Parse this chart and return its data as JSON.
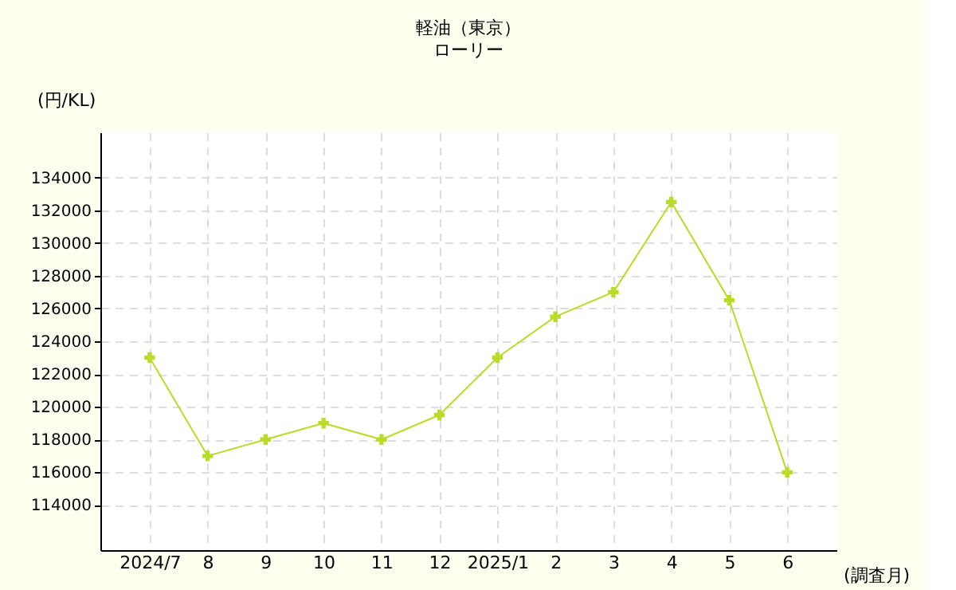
{
  "chart_data": {
    "type": "line",
    "title": "軽油（東京）",
    "subtitle": "ローリー",
    "xlabel": "(調査月)",
    "ylabel": "(円/KL)",
    "categories": [
      "2024/7",
      "8",
      "9",
      "10",
      "11",
      "12",
      "2025/1",
      "2",
      "3",
      "4",
      "5",
      "6"
    ],
    "series": [
      {
        "color": "#b8dc28",
        "values": [
          123000,
          117000,
          118000,
          119000,
          118000,
          119500,
          123000,
          125500,
          127000,
          132500,
          126500,
          116000
        ]
      }
    ],
    "ylim": [
      111250,
      136750
    ],
    "yticks": [
      114000,
      116000,
      118000,
      120000,
      122000,
      124000,
      126000,
      128000,
      130000,
      132000,
      134000
    ],
    "grid": true,
    "marker": "cross",
    "line_style": "solid",
    "legend": false
  }
}
